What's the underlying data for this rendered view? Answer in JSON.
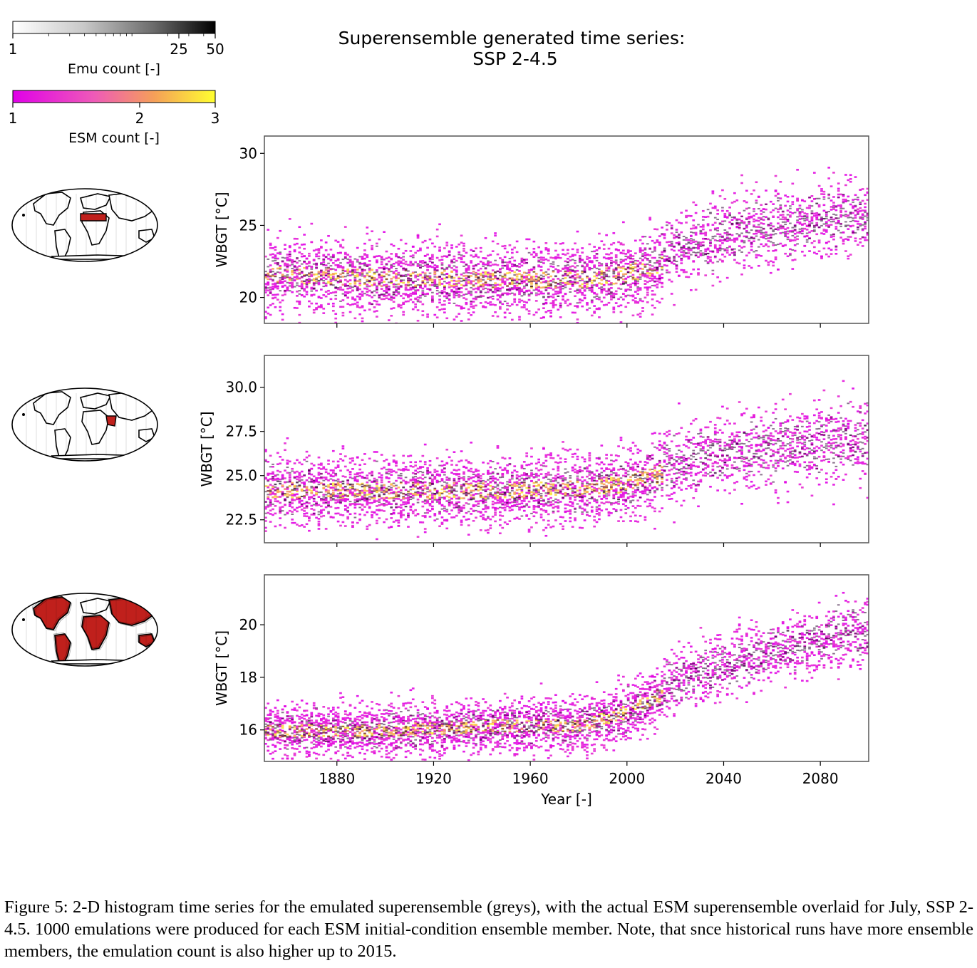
{
  "chart_data": {
    "type": "heatmap",
    "title_lines": [
      "Superensemble generated time series:",
      "SSP 2-4.5"
    ],
    "xlabel": "Year [-]",
    "xlim": [
      1850,
      2100
    ],
    "xticks": [
      1880,
      1920,
      1960,
      2000,
      2040,
      2080
    ],
    "historical_end_year": 2015,
    "colorbars": [
      {
        "label": "Emu count [-]",
        "ticks": [
          1,
          25,
          50
        ],
        "scale": "log",
        "colors": [
          "#ffffff",
          "#000000"
        ]
      },
      {
        "label": "ESM count [-]",
        "ticks": [
          1,
          2,
          3
        ],
        "scale": "linear",
        "colors": [
          "#e000e8",
          "#f07ab0",
          "#f8b050",
          "#ffff30"
        ]
      }
    ],
    "panels": [
      {
        "ylabel": "WBGT [°C]",
        "ylim": [
          18.2,
          31.2
        ],
        "yticks": [
          20,
          25,
          30
        ],
        "ytick_labels": [
          "20",
          "25",
          "30"
        ],
        "region": "Sahara / North Africa",
        "emu_band": {
          "years": [
            1850,
            1900,
            1950,
            1980,
            2000,
            2015,
            2050,
            2100
          ],
          "mean": [
            22.6,
            22.3,
            22.2,
            22.2,
            22.6,
            23.3,
            24.9,
            26.0
          ],
          "spread": [
            2.3,
            2.3,
            2.3,
            2.3,
            2.4,
            2.5,
            2.6,
            2.7
          ],
          "hist_shift": -0.9
        }
      },
      {
        "ylabel": "WBGT [°C]",
        "ylim": [
          21.2,
          31.8
        ],
        "yticks": [
          22.5,
          25.0,
          27.5,
          30.0
        ],
        "ytick_labels": [
          "22.5",
          "25.0",
          "27.5",
          "30.0"
        ],
        "region": "Arabian Peninsula",
        "emu_band": {
          "years": [
            1850,
            1900,
            1950,
            1980,
            2000,
            2015,
            2050,
            2100
          ],
          "mean": [
            24.8,
            24.8,
            24.8,
            24.9,
            25.2,
            25.8,
            26.6,
            27.3
          ],
          "spread": [
            1.8,
            1.8,
            1.8,
            1.8,
            1.9,
            2.0,
            2.2,
            2.5
          ],
          "hist_shift": -0.6
        }
      },
      {
        "ylabel": "WBGT [°C]",
        "ylim": [
          14.8,
          21.9
        ],
        "yticks": [
          16,
          18,
          20
        ],
        "ytick_labels": [
          "16",
          "18",
          "20"
        ],
        "region": "Global land mean",
        "emu_band": {
          "years": [
            1850,
            1900,
            1950,
            1980,
            2000,
            2015,
            2050,
            2100
          ],
          "mean": [
            16.4,
            16.4,
            16.6,
            16.6,
            17.1,
            17.8,
            18.9,
            20.0
          ],
          "spread": [
            0.95,
            0.95,
            0.95,
            0.95,
            1.0,
            1.05,
            1.15,
            1.3
          ],
          "hist_shift": -0.4
        }
      }
    ]
  },
  "caption": "Figure 5: 2-D histogram time series for the emulated superensemble (greys), with the actual ESM superensemble overlaid for July, SSP 2-4.5. 1000 emulations were produced for each ESM initial-condition ensemble member. Note, that snce historical runs have more ensemble members, the emulation count is also higher up to 2015.",
  "colors": {
    "region_fill": "#c0201c",
    "axis": "#555555"
  }
}
